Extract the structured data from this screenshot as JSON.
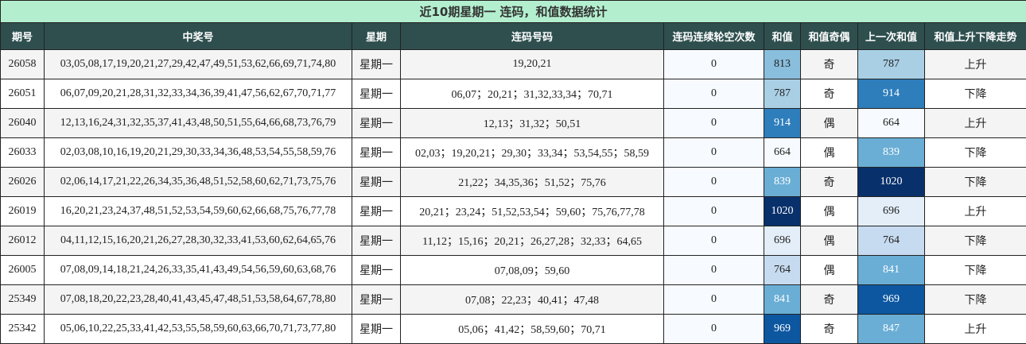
{
  "title": "近10期星期一 连码，和值数据统计",
  "headers": [
    "期号",
    "中奖号",
    "星期",
    "连码号码",
    "连码连续轮空次数",
    "和值",
    "和值奇偶",
    "上一次和值",
    "和值上升下降走势"
  ],
  "rows": [
    [
      "26058",
      "03,05,08,17,19,20,21,27,29,42,47,49,51,53,62,66,69,71,74,80",
      "星期一",
      "19,20,21",
      "0",
      "813",
      "奇",
      "787",
      "上升"
    ],
    [
      "26051",
      "06,07,09,20,21,28,31,32,33,34,36,39,41,47,56,62,67,70,71,77",
      "星期一",
      "06,07；20,21；31,32,33,34；70,71",
      "0",
      "787",
      "奇",
      "914",
      "下降"
    ],
    [
      "26040",
      "12,13,16,24,31,32,35,37,41,43,48,50,51,55,64,66,68,73,76,79",
      "星期一",
      "12,13；31,32；50,51",
      "0",
      "914",
      "偶",
      "664",
      "上升"
    ],
    [
      "26033",
      "02,03,08,10,16,19,20,21,29,30,33,34,36,48,53,54,55,58,59,76",
      "星期一",
      "02,03；19,20,21；29,30；33,34；53,54,55；58,59",
      "0",
      "664",
      "偶",
      "839",
      "下降"
    ],
    [
      "26026",
      "02,06,14,17,21,22,26,34,35,36,48,51,52,58,60,62,71,73,75,76",
      "星期一",
      "21,22；34,35,36；51,52；75,76",
      "0",
      "839",
      "奇",
      "1020",
      "下降"
    ],
    [
      "26019",
      "16,20,21,23,24,37,48,51,52,53,54,59,60,62,66,68,75,76,77,78",
      "星期一",
      "20,21；23,24；51,52,53,54；59,60；75,76,77,78",
      "0",
      "1020",
      "偶",
      "696",
      "上升"
    ],
    [
      "26012",
      "04,11,12,15,16,20,21,26,27,28,30,32,33,41,53,60,62,64,65,76",
      "星期一",
      "11,12；15,16；20,21；26,27,28；32,33；64,65",
      "0",
      "696",
      "偶",
      "764",
      "下降"
    ],
    [
      "26005",
      "07,08,09,14,18,21,24,26,33,35,41,43,49,54,56,59,60,63,68,76",
      "星期一",
      "07,08,09；59,60",
      "0",
      "764",
      "偶",
      "841",
      "下降"
    ],
    [
      "25349",
      "07,08,18,20,22,23,28,40,41,43,45,47,48,51,53,58,64,67,78,80",
      "星期一",
      "07,08；22,23；40,41；47,48",
      "0",
      "841",
      "奇",
      "969",
      "下降"
    ],
    [
      "25342",
      "05,06,10,22,25,33,41,42,53,55,58,59,60,63,66,70,71,73,77,80",
      "星期一",
      "05,06；41,42；58,59,60；70,71",
      "0",
      "969",
      "奇",
      "847",
      "上升"
    ]
  ],
  "colors": {
    "title_bg": "#b3efcf",
    "header_bg": "#2f4f4f"
  }
}
